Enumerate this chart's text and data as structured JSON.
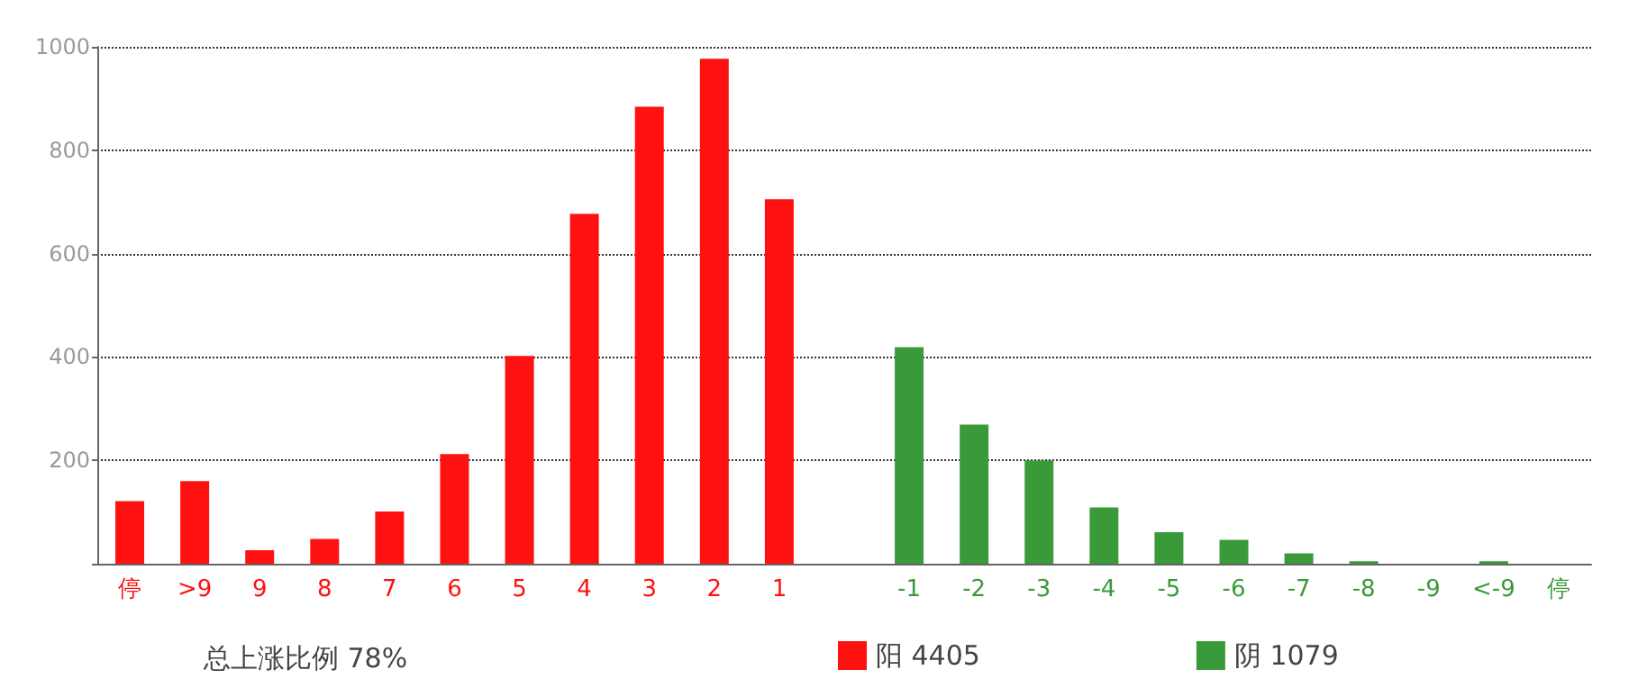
{
  "chart_data": {
    "type": "bar",
    "categories": [
      "停",
      ">9",
      "9",
      "8",
      "7",
      "6",
      "5",
      "4",
      "3",
      "2",
      "1",
      null,
      "-1",
      "-2",
      "-3",
      "-4",
      "-5",
      "-6",
      "-7",
      "-8",
      "-9",
      "<-9",
      "停"
    ],
    "series": [
      {
        "name": "阳 4405",
        "color": "#ff1111",
        "values": [
          121,
          160,
          26,
          48,
          101,
          212,
          402,
          677,
          884,
          977,
          705,
          null,
          null,
          null,
          null,
          null,
          null,
          null,
          null,
          null,
          null,
          null,
          null
        ]
      },
      {
        "name": "阴 1079",
        "color": "#3a9a3a",
        "values": [
          null,
          null,
          null,
          null,
          null,
          null,
          null,
          null,
          null,
          null,
          null,
          null,
          419,
          269,
          200,
          109,
          61,
          46,
          20,
          5,
          0,
          5,
          0
        ]
      }
    ],
    "ylim": [
      0,
      1000
    ],
    "yticks": [
      {
        "value": 0,
        "label": null
      },
      200,
      400,
      600,
      800,
      1000
    ],
    "grid": "y",
    "legend": "bottom",
    "annotations": [
      "总上涨比例 78%"
    ]
  }
}
